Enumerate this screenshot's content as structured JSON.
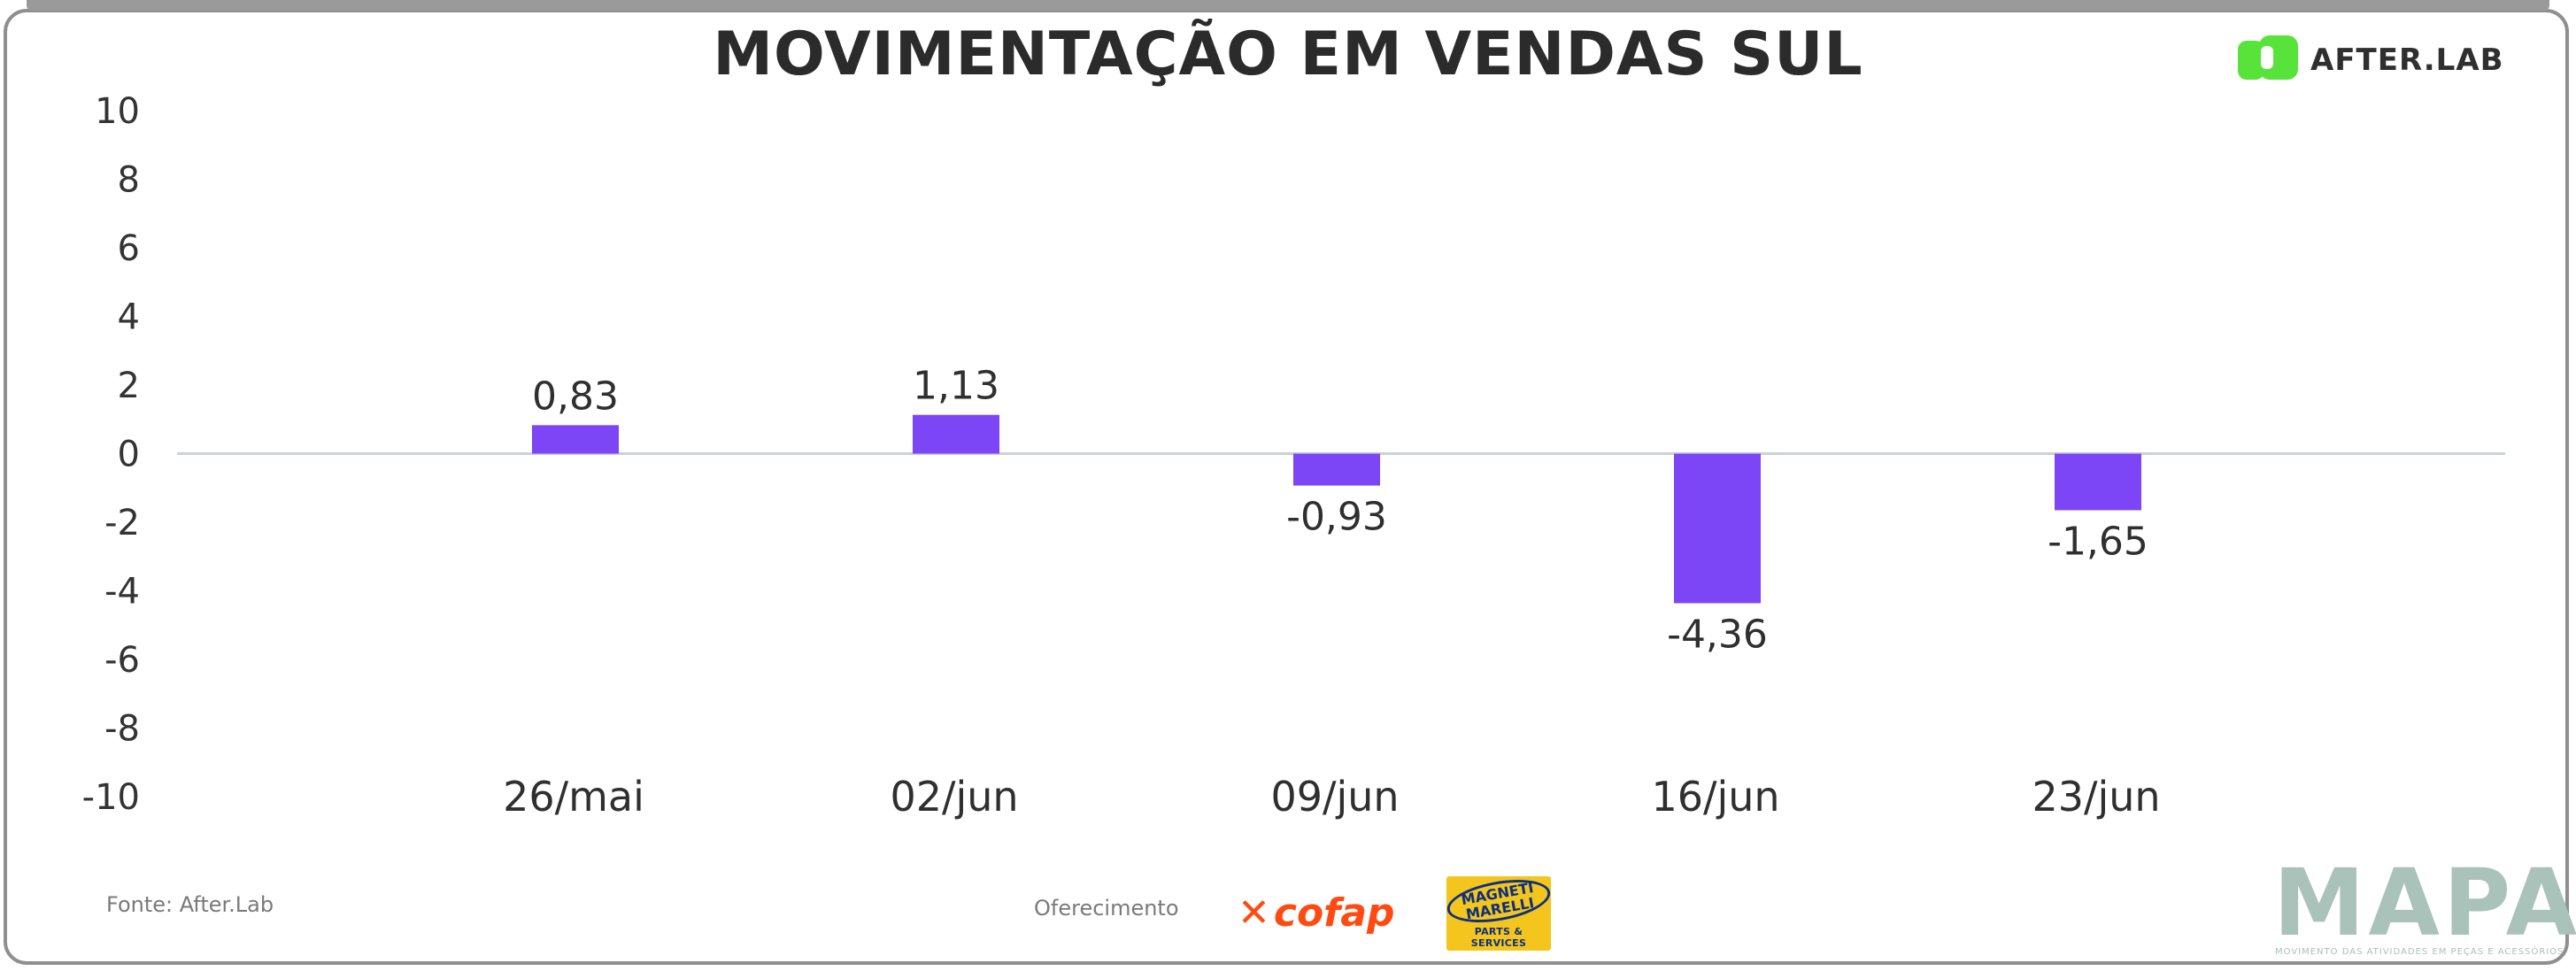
{
  "header": {
    "title": "MOVIMENTAÇÃO EM VENDAS SUL",
    "brand": "AFTER.LAB"
  },
  "chart_data": {
    "type": "bar",
    "title": "MOVIMENTAÇÃO EM VENDAS SUL",
    "categories": [
      "26/mai",
      "02/jun",
      "09/jun",
      "16/jun",
      "23/jun"
    ],
    "values": [
      0.83,
      1.13,
      -0.93,
      -4.36,
      -1.65
    ],
    "value_labels": [
      "0,83",
      "1,13",
      "-0,93",
      "-4,36",
      "-1,65"
    ],
    "ylim": [
      -10,
      10
    ],
    "yticks": [
      10,
      8,
      6,
      4,
      2,
      0,
      -2,
      -4,
      -6,
      -8,
      -10
    ],
    "xlabel": "",
    "ylabel": "",
    "grid": false,
    "bar_color": "#7c45f5",
    "zero_line_color": "#c9d3d6"
  },
  "footer": {
    "source": "Fonte: After.Lab",
    "sponsor_label": "Oferecimento",
    "sponsors": [
      "cofap",
      "MAGNETI MARELLI",
      "PARTS & SERVICES"
    ],
    "mapa": "MAPA",
    "mapa_tagline": "MOVIMENTO DAS ATIVIDADES EM PEÇAS E ACESSÓRIOS"
  },
  "colors": {
    "brand_green": "#57e33a",
    "text": "#2f2f2f",
    "cofap": "#ff4a12",
    "magneti_bg": "#f4c51c",
    "magneti_fg": "#0c2f82",
    "mapa": "#a9c2ba"
  }
}
